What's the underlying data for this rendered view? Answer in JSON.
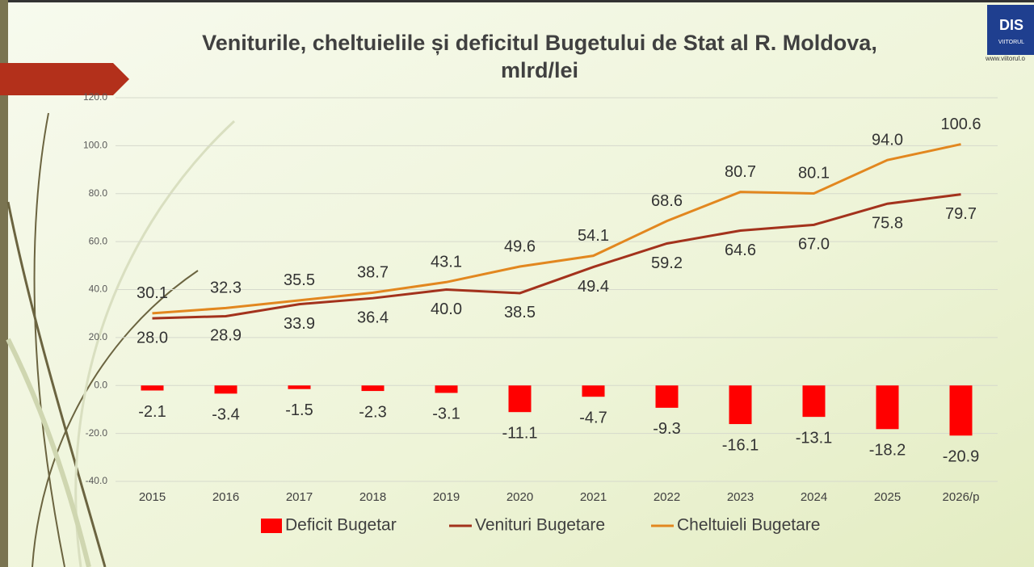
{
  "chart_data": {
    "type": "combo",
    "title": [
      "Veniturile, cheltuielile și deficitul Bugetului de Stat al R. Moldova,",
      "mlrd/lei"
    ],
    "categories": [
      "2015",
      "2016",
      "2017",
      "2018",
      "2019",
      "2020",
      "2021",
      "2022",
      "2023",
      "2024",
      "2025",
      "2026/p"
    ],
    "ylim": [
      -40,
      120
    ],
    "yticks": [
      {
        "value": -40,
        "label": "-40.0"
      },
      {
        "value": -20,
        "label": "-20.0"
      },
      {
        "value": 0,
        "label": "0.0"
      },
      {
        "value": 20,
        "label": "20.0"
      },
      {
        "value": 40,
        "label": "40.0"
      },
      {
        "value": 60,
        "label": "60.0"
      },
      {
        "value": 80,
        "label": "80.0"
      },
      {
        "value": 100,
        "label": "100.0"
      },
      {
        "value": 120,
        "label": "120.0"
      }
    ],
    "grid": true,
    "legend": "bottom",
    "series": [
      {
        "name": "Deficit Bugetar",
        "type": "bar",
        "color": "#ff0000",
        "values": [
          -2.1,
          -3.4,
          -1.5,
          -2.3,
          -3.1,
          -11.1,
          -4.7,
          -9.3,
          -16.1,
          -13.1,
          -18.2,
          -20.9
        ]
      },
      {
        "name": "Venituri Bugetare",
        "type": "line",
        "color": "#a3321c",
        "values": [
          28,
          28.9,
          33.9,
          36.4,
          40,
          38.5,
          49.4,
          59.2,
          64.6,
          67,
          75.8,
          79.7
        ],
        "value_labels": [
          "28.0",
          "28.9",
          "33.9",
          "36.4",
          "40.0",
          "38.5",
          "49.4",
          "59.2",
          "64.6",
          "67.0",
          "75.8",
          "79.7"
        ]
      },
      {
        "name": "Cheltuieli Bugetare",
        "type": "line",
        "color": "#e2871f",
        "values": [
          30.1,
          32.3,
          35.5,
          38.7,
          43.1,
          49.6,
          54.1,
          68.6,
          80.7,
          80.1,
          94,
          100.6
        ],
        "value_labels": [
          "30.1",
          "32.3",
          "35.5",
          "38.7",
          "43.1",
          "49.6",
          "54.1",
          "68.6",
          "80.7",
          "80.1",
          "94.0",
          "100.6"
        ]
      }
    ]
  },
  "logo": {
    "name": "DIS",
    "sub": "VIITORUL",
    "url": "www.viitorul.o"
  }
}
